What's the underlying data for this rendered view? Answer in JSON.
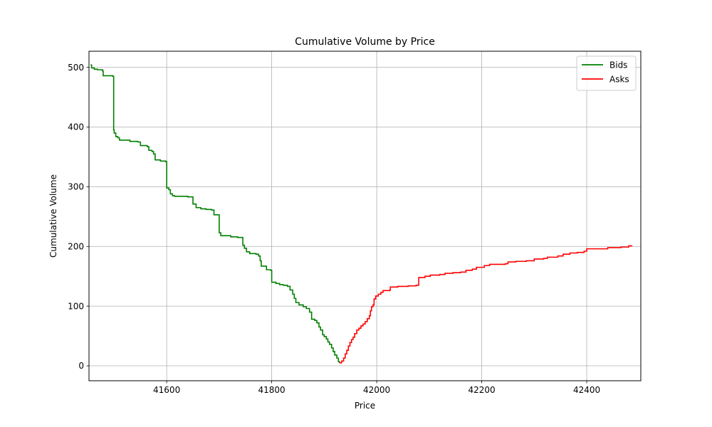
{
  "chart_data": {
    "type": "line",
    "title": "Cumulative Volume by Price",
    "xlabel": "Price",
    "ylabel": "Cumulative Volume",
    "xlim": [
      41452,
      42503
    ],
    "ylim": [
      -25,
      527
    ],
    "xticks": [
      41600,
      41800,
      42000,
      42200,
      42400
    ],
    "yticks": [
      0,
      100,
      200,
      300,
      400,
      500
    ],
    "grid": true,
    "legend_position": "top-right",
    "series": [
      {
        "name": "Bids",
        "color": "#008000",
        "step": true,
        "points": [
          [
            41455,
            504
          ],
          [
            41457,
            499
          ],
          [
            41462,
            497
          ],
          [
            41468,
            496
          ],
          [
            41478,
            494
          ],
          [
            41479,
            486
          ],
          [
            41497,
            485
          ],
          [
            41499,
            395
          ],
          [
            41500,
            390
          ],
          [
            41503,
            384
          ],
          [
            41507,
            382
          ],
          [
            41510,
            378
          ],
          [
            41530,
            376
          ],
          [
            41545,
            375
          ],
          [
            41550,
            369
          ],
          [
            41563,
            367
          ],
          [
            41566,
            361
          ],
          [
            41572,
            359
          ],
          [
            41575,
            355
          ],
          [
            41578,
            345
          ],
          [
            41588,
            343
          ],
          [
            41598,
            342
          ],
          [
            41600,
            298
          ],
          [
            41604,
            295
          ],
          [
            41607,
            288
          ],
          [
            41611,
            285
          ],
          [
            41615,
            284
          ],
          [
            41640,
            283
          ],
          [
            41650,
            271
          ],
          [
            41656,
            265
          ],
          [
            41665,
            263
          ],
          [
            41675,
            262
          ],
          [
            41685,
            261
          ],
          [
            41690,
            253
          ],
          [
            41700,
            223
          ],
          [
            41703,
            218
          ],
          [
            41722,
            216
          ],
          [
            41735,
            215
          ],
          [
            41745,
            202
          ],
          [
            41748,
            197
          ],
          [
            41752,
            191
          ],
          [
            41758,
            188
          ],
          [
            41770,
            187
          ],
          [
            41775,
            184
          ],
          [
            41778,
            176
          ],
          [
            41780,
            167
          ],
          [
            41790,
            161
          ],
          [
            41798,
            160
          ],
          [
            41800,
            140
          ],
          [
            41808,
            138
          ],
          [
            41815,
            136
          ],
          [
            41822,
            135
          ],
          [
            41830,
            133
          ],
          [
            41835,
            127
          ],
          [
            41840,
            120
          ],
          [
            41843,
            113
          ],
          [
            41846,
            106
          ],
          [
            41852,
            102
          ],
          [
            41860,
            99
          ],
          [
            41866,
            96
          ],
          [
            41872,
            90
          ],
          [
            41876,
            78
          ],
          [
            41882,
            76
          ],
          [
            41886,
            72
          ],
          [
            41890,
            65
          ],
          [
            41893,
            60
          ],
          [
            41897,
            52
          ],
          [
            41900,
            49
          ],
          [
            41904,
            45
          ],
          [
            41907,
            40
          ],
          [
            41910,
            36
          ],
          [
            41914,
            30
          ],
          [
            41917,
            24
          ],
          [
            41920,
            18
          ],
          [
            41924,
            13
          ],
          [
            41927,
            7
          ],
          [
            41929,
            5
          ]
        ]
      },
      {
        "name": "Asks",
        "color": "#ff0000",
        "step": true,
        "points": [
          [
            41929,
            5
          ],
          [
            41933,
            8
          ],
          [
            41937,
            13
          ],
          [
            41940,
            20
          ],
          [
            41943,
            26
          ],
          [
            41946,
            33
          ],
          [
            41949,
            39
          ],
          [
            41952,
            44
          ],
          [
            41955,
            48
          ],
          [
            41958,
            54
          ],
          [
            41962,
            60
          ],
          [
            41966,
            63
          ],
          [
            41970,
            67
          ],
          [
            41974,
            70
          ],
          [
            41978,
            74
          ],
          [
            41982,
            79
          ],
          [
            41986,
            84
          ],
          [
            41988,
            92
          ],
          [
            41990,
            99
          ],
          [
            41993,
            102
          ],
          [
            41995,
            112
          ],
          [
            41998,
            117
          ],
          [
            42003,
            120
          ],
          [
            42008,
            123
          ],
          [
            42012,
            126
          ],
          [
            42025,
            127
          ],
          [
            42026,
            132
          ],
          [
            42040,
            133
          ],
          [
            42060,
            134
          ],
          [
            42075,
            135
          ],
          [
            42080,
            148
          ],
          [
            42092,
            150
          ],
          [
            42102,
            152
          ],
          [
            42120,
            153
          ],
          [
            42130,
            155
          ],
          [
            42145,
            156
          ],
          [
            42160,
            157
          ],
          [
            42170,
            160
          ],
          [
            42182,
            162
          ],
          [
            42190,
            165
          ],
          [
            42205,
            168
          ],
          [
            42215,
            170
          ],
          [
            42245,
            171
          ],
          [
            42250,
            174
          ],
          [
            42265,
            175
          ],
          [
            42285,
            176
          ],
          [
            42300,
            179
          ],
          [
            42318,
            180
          ],
          [
            42325,
            182
          ],
          [
            42345,
            184
          ],
          [
            42355,
            187
          ],
          [
            42368,
            189
          ],
          [
            42382,
            190
          ],
          [
            42395,
            192
          ],
          [
            42400,
            196
          ],
          [
            42440,
            198
          ],
          [
            42465,
            199
          ],
          [
            42480,
            201
          ],
          [
            42487,
            201
          ]
        ]
      }
    ]
  }
}
